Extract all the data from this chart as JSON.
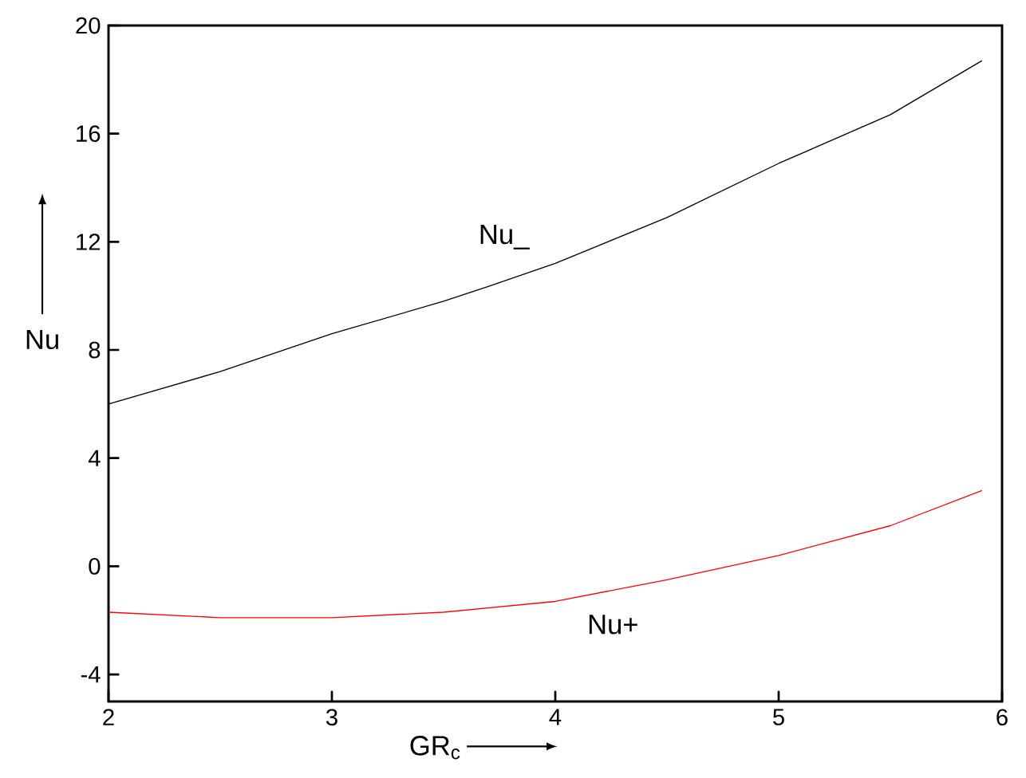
{
  "chart_data": {
    "type": "line",
    "xlabel": "GR$_{c}$",
    "ylabel": "Nu",
    "series": [
      {
        "name": "Nu_",
        "color": "#000000",
        "x": [
          2,
          2.5,
          3,
          3.5,
          3.7,
          4,
          4.5,
          5,
          5.5,
          5.91
        ],
        "values": [
          6,
          7.2,
          8.6,
          9.8,
          10.35,
          11.2,
          12.9,
          14.9,
          16.7,
          18.7
        ]
      },
      {
        "name": "Nu+",
        "color": "#ff0000",
        "x": [
          2,
          2.5,
          3,
          3.5,
          4,
          4.5,
          5,
          5.5,
          5.91
        ],
        "values": [
          -1.7,
          -1.9,
          -1.9,
          -1.7,
          -1.3,
          -0.5,
          0.4,
          1.5,
          2.8
        ]
      }
    ],
    "xlim": [
      2,
      6
    ],
    "ylim": [
      -5,
      20
    ],
    "xticks": [
      2,
      3,
      4,
      5,
      6
    ],
    "yticks": [
      -4,
      0,
      4,
      8,
      12,
      16,
      20
    ]
  }
}
